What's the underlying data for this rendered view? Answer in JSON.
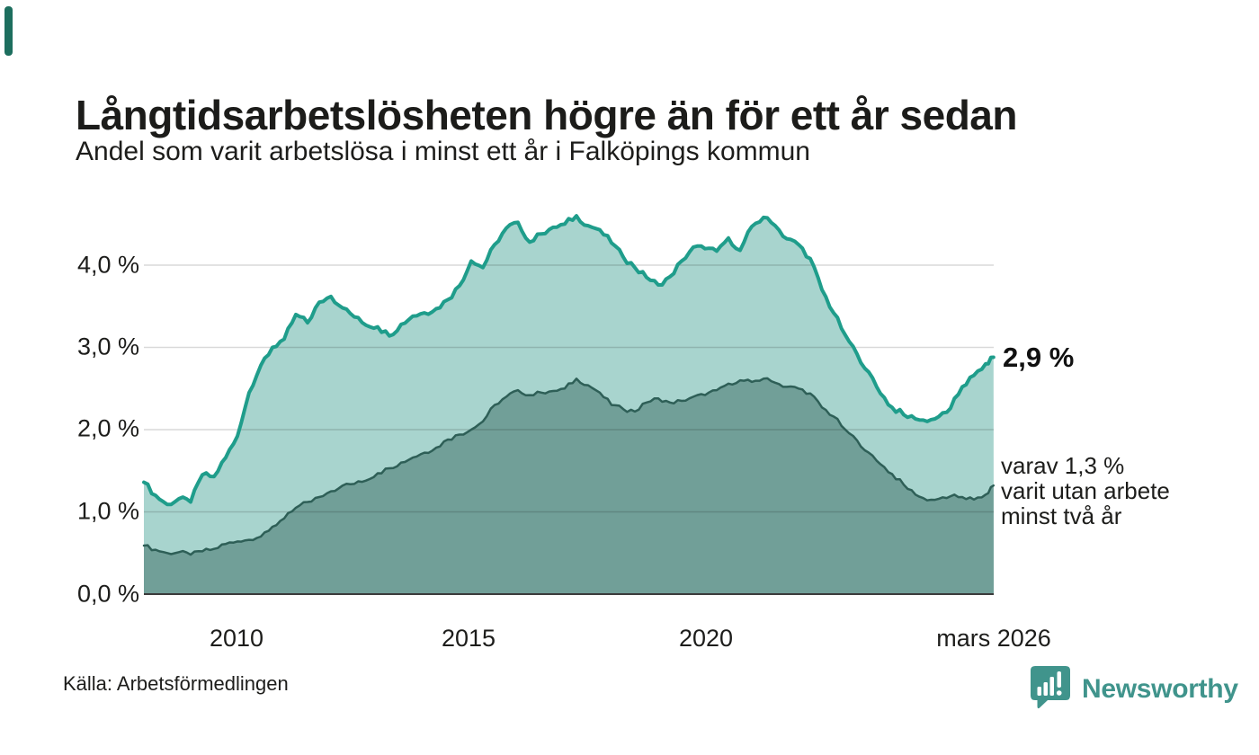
{
  "accent_color": "#1d6e5e",
  "header": {
    "title": "Långtidsarbetslösheten högre än för ett år sedan",
    "subtitle": "Andel som varit arbetslösa i minst ett år i Falköpings kommun"
  },
  "chart_data": {
    "type": "area",
    "title": "Långtidsarbetslösheten högre än för ett år sedan",
    "subtitle": "Andel som varit arbetslösa i minst ett år i Falköpings kommun",
    "x_unit": "decimal_year",
    "xlim": [
      2008.0,
      2026.17
    ],
    "ylim": [
      0,
      4.8
    ],
    "grid": true,
    "legend_position": "none",
    "yticks": [
      {
        "v": 0.0,
        "label": "0,0 %"
      },
      {
        "v": 1.0,
        "label": "1,0 %"
      },
      {
        "v": 2.0,
        "label": "2,0 %"
      },
      {
        "v": 3.0,
        "label": "3,0 %"
      },
      {
        "v": 4.0,
        "label": "4,0 %"
      }
    ],
    "xticks": [
      {
        "t": 2010.0,
        "label": "2010"
      },
      {
        "t": 2015.0,
        "label": "2015"
      },
      {
        "t": 2020.0,
        "label": "2020"
      },
      {
        "t": 2026.17,
        "label": "mars 2026"
      }
    ],
    "x": [
      2008.0,
      2008.25,
      2008.5,
      2008.75,
      2009.0,
      2009.25,
      2009.5,
      2009.75,
      2010.0,
      2010.25,
      2010.5,
      2010.75,
      2011.0,
      2011.25,
      2011.5,
      2011.75,
      2012.0,
      2012.25,
      2012.5,
      2012.75,
      2013.0,
      2013.25,
      2013.5,
      2013.75,
      2014.0,
      2014.25,
      2014.5,
      2014.75,
      2015.0,
      2015.25,
      2015.5,
      2015.75,
      2016.0,
      2016.25,
      2016.5,
      2016.75,
      2017.0,
      2017.25,
      2017.5,
      2017.75,
      2018.0,
      2018.25,
      2018.5,
      2018.75,
      2019.0,
      2019.25,
      2019.5,
      2019.75,
      2020.0,
      2020.25,
      2020.5,
      2020.75,
      2021.0,
      2021.25,
      2021.5,
      2021.75,
      2022.0,
      2022.25,
      2022.5,
      2022.75,
      2023.0,
      2023.25,
      2023.5,
      2023.75,
      2024.0,
      2024.25,
      2024.5,
      2024.75,
      2025.0,
      2025.25,
      2025.5,
      2025.75,
      2026.0,
      2026.17
    ],
    "series": [
      {
        "name": "Arbetslösa minst ett år",
        "line_color": "#1f9d8b",
        "fill_color": "#a8d4ce",
        "line_width": 4,
        "values": [
          1.36,
          1.2,
          1.09,
          1.16,
          1.12,
          1.45,
          1.43,
          1.66,
          1.92,
          2.45,
          2.78,
          3.0,
          3.1,
          3.4,
          3.3,
          3.55,
          3.62,
          3.48,
          3.37,
          3.27,
          3.25,
          3.14,
          3.28,
          3.38,
          3.42,
          3.47,
          3.58,
          3.75,
          4.05,
          3.97,
          4.25,
          4.45,
          4.52,
          4.28,
          4.38,
          4.46,
          4.5,
          4.6,
          4.48,
          4.43,
          4.27,
          4.1,
          3.97,
          3.85,
          3.76,
          3.86,
          4.05,
          4.22,
          4.2,
          4.17,
          4.33,
          4.18,
          4.47,
          4.58,
          4.48,
          4.32,
          4.25,
          4.08,
          3.7,
          3.42,
          3.15,
          2.92,
          2.7,
          2.44,
          2.27,
          2.18,
          2.13,
          2.1,
          2.16,
          2.26,
          2.52,
          2.66,
          2.8,
          2.88
        ]
      },
      {
        "name": "Utan arbete minst två år",
        "line_color": "#2e5f57",
        "fill_color": "#719f98",
        "line_width": 2.5,
        "values": [
          0.59,
          0.54,
          0.5,
          0.51,
          0.48,
          0.52,
          0.55,
          0.61,
          0.64,
          0.66,
          0.7,
          0.82,
          0.92,
          1.05,
          1.12,
          1.18,
          1.25,
          1.32,
          1.34,
          1.38,
          1.47,
          1.53,
          1.6,
          1.66,
          1.72,
          1.78,
          1.88,
          1.94,
          2.0,
          2.1,
          2.3,
          2.4,
          2.48,
          2.42,
          2.45,
          2.47,
          2.5,
          2.62,
          2.54,
          2.45,
          2.3,
          2.25,
          2.22,
          2.33,
          2.38,
          2.33,
          2.35,
          2.4,
          2.42,
          2.48,
          2.56,
          2.6,
          2.58,
          2.62,
          2.57,
          2.52,
          2.5,
          2.44,
          2.27,
          2.16,
          2.0,
          1.87,
          1.72,
          1.58,
          1.46,
          1.33,
          1.21,
          1.14,
          1.16,
          1.19,
          1.18,
          1.15,
          1.21,
          1.32
        ]
      }
    ],
    "grid_color": "#dadada",
    "baseline_color": "#3b3b3b"
  },
  "annotations": {
    "latest_total": "2,9 %",
    "secondary": [
      "varav 1,3 %",
      "varit utan arbete",
      "minst två år"
    ]
  },
  "footer": {
    "source": "Källa: Arbetsförmedlingen",
    "brand": "Newsworthy",
    "brand_color": "#40948c"
  }
}
